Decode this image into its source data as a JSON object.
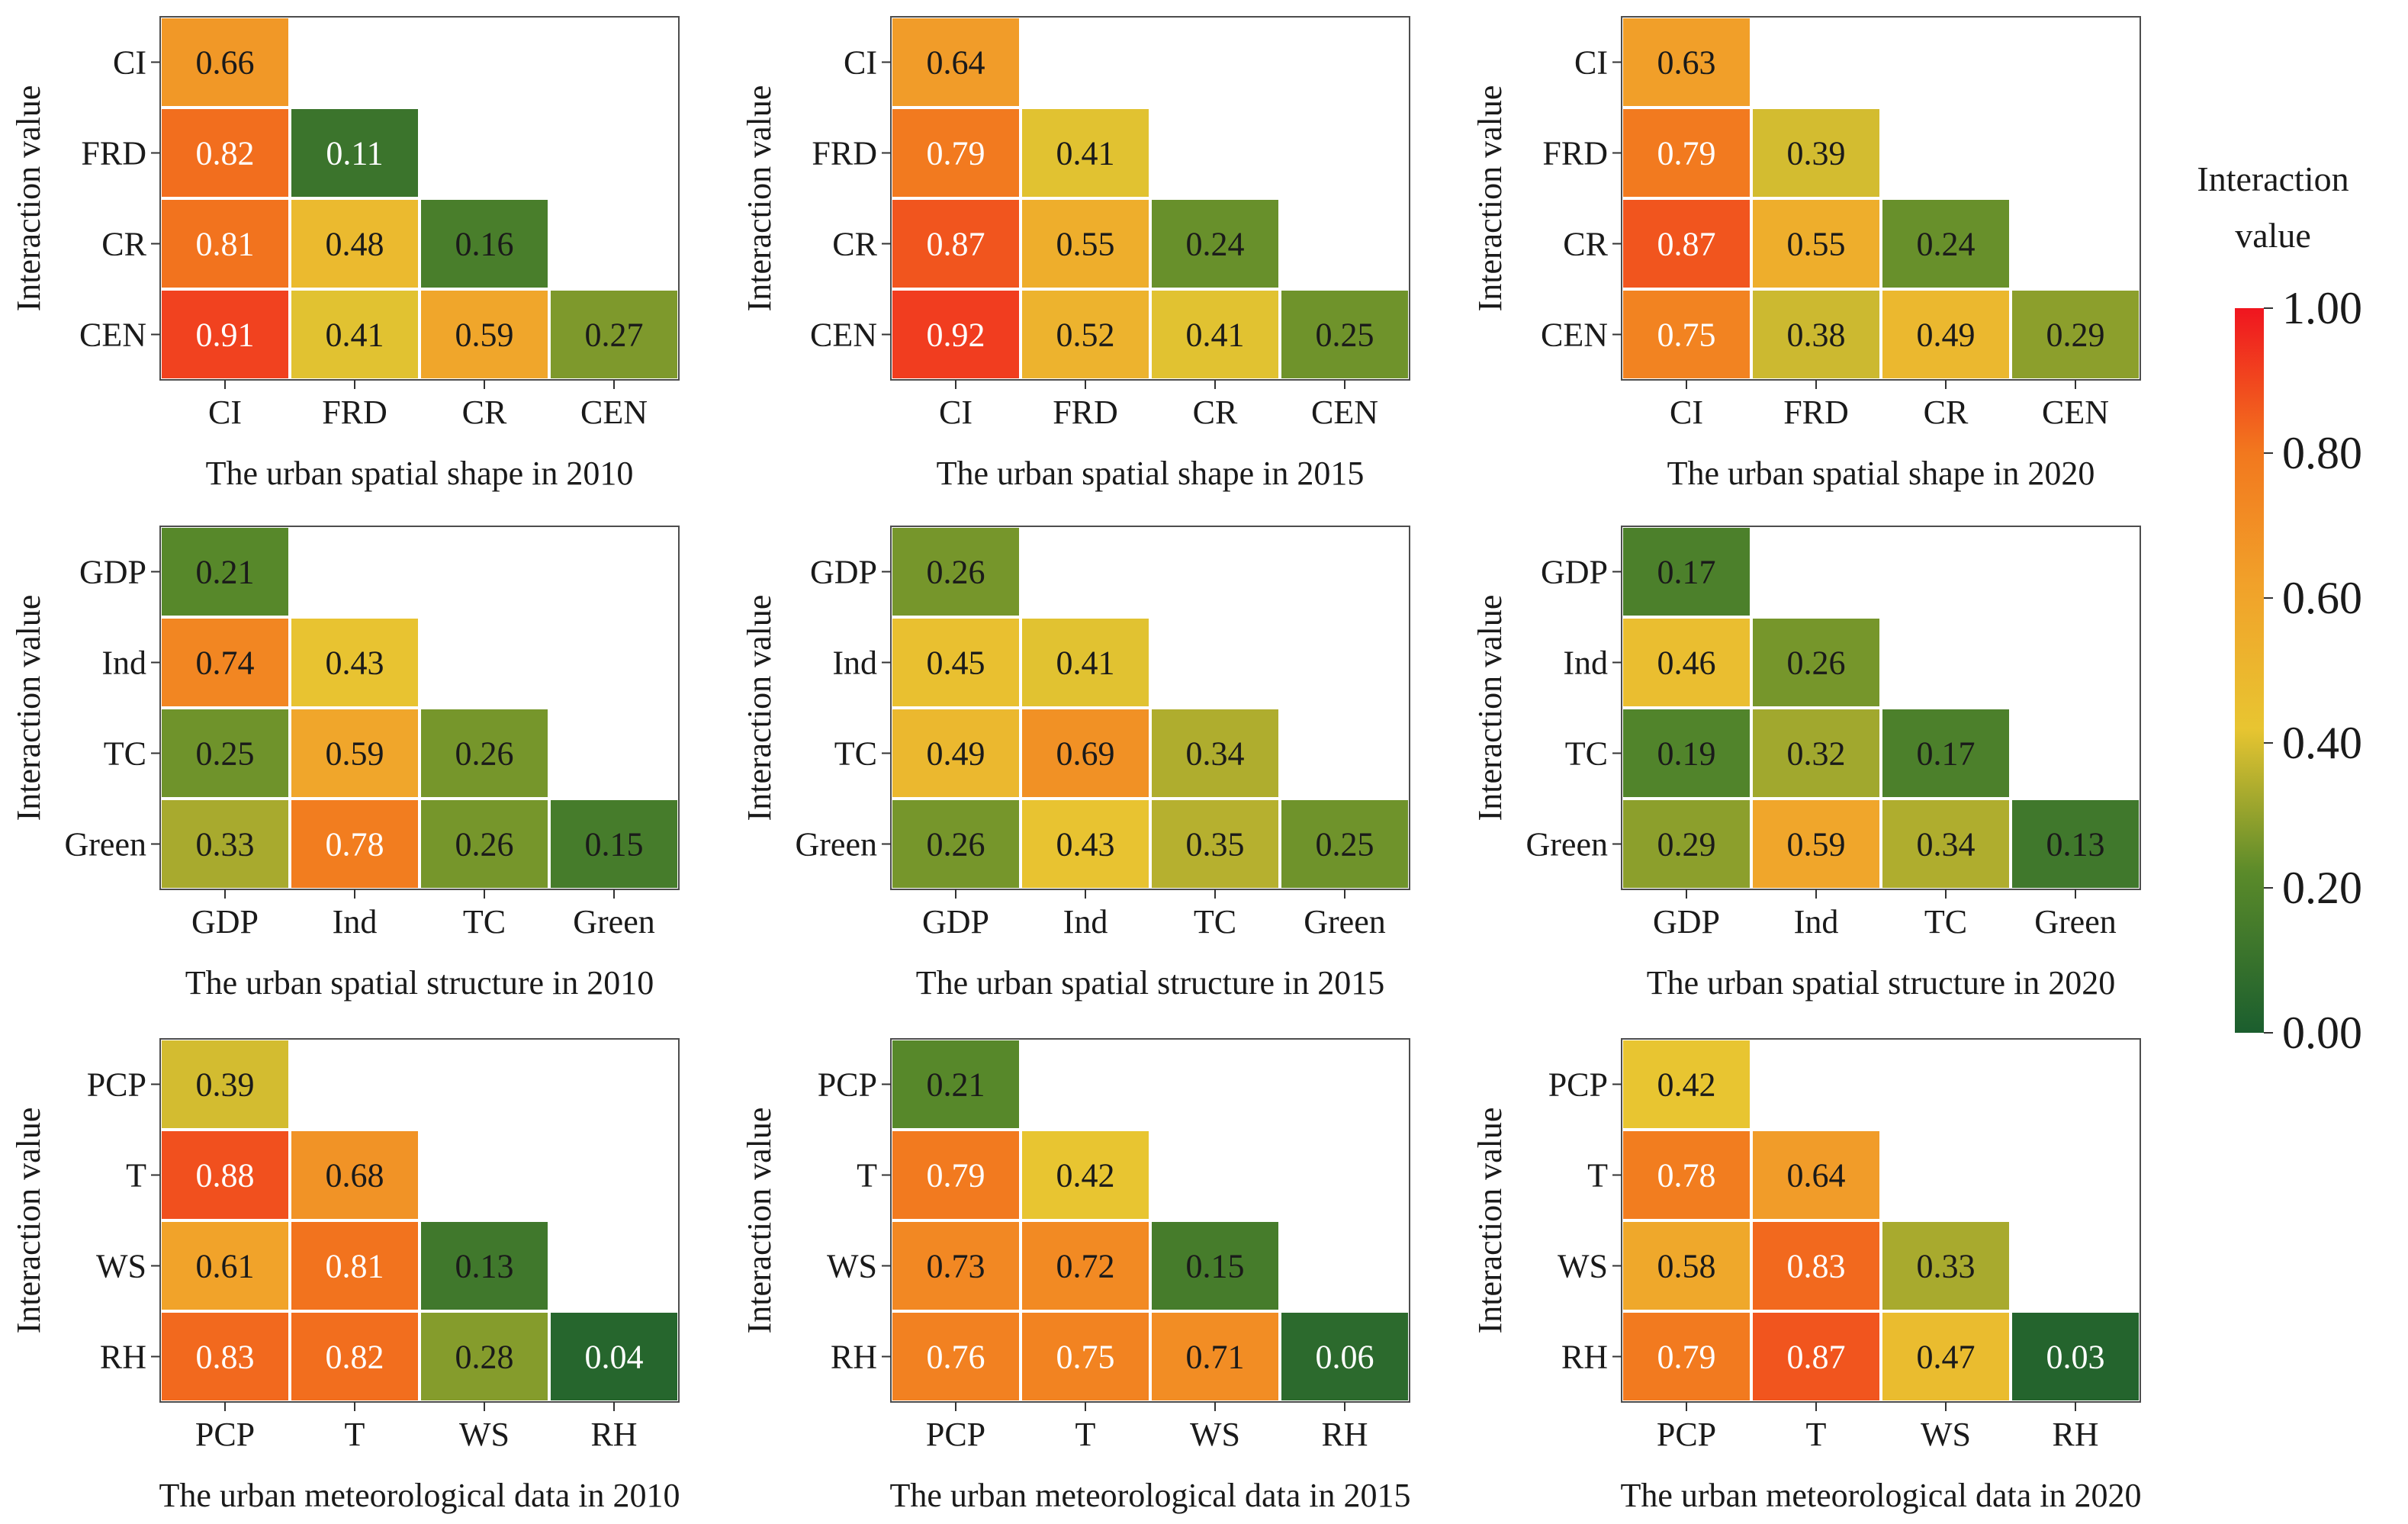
{
  "figure": {
    "y_axis_label": "Interaction value",
    "colorbar": {
      "title_line1": "Interaction",
      "title_line2": "value",
      "ticks": [
        "1.00",
        "0.80",
        "0.60",
        "0.40",
        "0.20",
        "0.00"
      ],
      "colors": {
        "low": "#1b5e2e",
        "mid_low": "#5a8a2a",
        "mid": "#e8c531",
        "mid_high": "#f2781e",
        "high": "#f0151f"
      }
    }
  },
  "chart_data": [
    {
      "type": "heatmap",
      "title": "The urban spatial shape in 2010",
      "categories": [
        "CI",
        "FRD",
        "CR",
        "CEN"
      ],
      "values": [
        [
          0.66
        ],
        [
          0.82,
          0.11
        ],
        [
          0.81,
          0.48,
          0.16
        ],
        [
          0.91,
          0.41,
          0.59,
          0.27
        ]
      ],
      "labels": [
        [
          "0.66"
        ],
        [
          "0.82",
          "0.11"
        ],
        [
          "0.81",
          "0.48",
          "0.16"
        ],
        [
          "0.91",
          "0.41",
          "0.59",
          "0.27"
        ]
      ],
      "ylabel": "Interaction value",
      "vrange": [
        0,
        1
      ]
    },
    {
      "type": "heatmap",
      "title": "The urban spatial shape in 2015",
      "categories": [
        "CI",
        "FRD",
        "CR",
        "CEN"
      ],
      "values": [
        [
          0.64
        ],
        [
          0.79,
          0.41
        ],
        [
          0.87,
          0.55,
          0.24
        ],
        [
          0.92,
          0.52,
          0.41,
          0.25
        ]
      ],
      "labels": [
        [
          "0.64"
        ],
        [
          "0.79",
          "0.41"
        ],
        [
          "0.87",
          "0.55",
          "0.24"
        ],
        [
          "0.92",
          "0.52",
          "0.41",
          "0.25"
        ]
      ],
      "ylabel": "Interaction value",
      "vrange": [
        0,
        1
      ]
    },
    {
      "type": "heatmap",
      "title": "The urban spatial shape in 2020",
      "categories": [
        "CI",
        "FRD",
        "CR",
        "CEN"
      ],
      "values": [
        [
          0.63
        ],
        [
          0.79,
          0.39
        ],
        [
          0.87,
          0.55,
          0.24
        ],
        [
          0.75,
          0.38,
          0.49,
          0.29
        ]
      ],
      "labels": [
        [
          "0.63"
        ],
        [
          "0.79",
          "0.39"
        ],
        [
          "0.87",
          "0.55",
          "0.24"
        ],
        [
          "0.75",
          "0.38",
          "0.49",
          "0.29"
        ]
      ],
      "ylabel": "Interaction value",
      "vrange": [
        0,
        1
      ]
    },
    {
      "type": "heatmap",
      "title": "The urban spatial structure in 2010",
      "categories": [
        "GDP",
        "Ind",
        "TC",
        "Green"
      ],
      "values": [
        [
          0.21
        ],
        [
          0.74,
          0.43
        ],
        [
          0.25,
          0.59,
          0.26
        ],
        [
          0.33,
          0.78,
          0.26,
          0.15
        ]
      ],
      "labels": [
        [
          "0.21"
        ],
        [
          "0.74",
          "0.43"
        ],
        [
          "0.25",
          "0.59",
          "0.26"
        ],
        [
          "0.33",
          "0.78",
          "0.26",
          "0.15"
        ]
      ],
      "ylabel": "Interaction value",
      "vrange": [
        0,
        1
      ]
    },
    {
      "type": "heatmap",
      "title": "The urban spatial structure in 2015",
      "categories": [
        "GDP",
        "Ind",
        "TC",
        "Green"
      ],
      "values": [
        [
          0.26
        ],
        [
          0.45,
          0.41
        ],
        [
          0.49,
          0.69,
          0.34
        ],
        [
          0.26,
          0.43,
          0.35,
          0.25
        ]
      ],
      "labels": [
        [
          "0.26"
        ],
        [
          "0.45",
          "0.41"
        ],
        [
          "0.49",
          "0.69",
          "0.34"
        ],
        [
          "0.26",
          "0.43",
          "0.35",
          "0.25"
        ]
      ],
      "ylabel": "Interaction value",
      "vrange": [
        0,
        1
      ]
    },
    {
      "type": "heatmap",
      "title": "The urban spatial structure in 2020",
      "categories": [
        "GDP",
        "Ind",
        "TC",
        "Green"
      ],
      "values": [
        [
          0.17
        ],
        [
          0.46,
          0.26
        ],
        [
          0.19,
          0.32,
          0.17
        ],
        [
          0.29,
          0.59,
          0.34,
          0.13
        ]
      ],
      "labels": [
        [
          "0.17"
        ],
        [
          "0.46",
          "0.26"
        ],
        [
          "0.19",
          "0.32",
          "0.17"
        ],
        [
          "0.29",
          "0.59",
          "0.34",
          "0.13"
        ]
      ],
      "ylabel": "Interaction value",
      "vrange": [
        0,
        1
      ]
    },
    {
      "type": "heatmap",
      "title": "The urban meteorological data in 2010",
      "categories": [
        "PCP",
        "T",
        "WS",
        "RH"
      ],
      "values": [
        [
          0.39
        ],
        [
          0.88,
          0.68
        ],
        [
          0.61,
          0.81,
          0.13
        ],
        [
          0.83,
          0.82,
          0.28,
          0.04
        ]
      ],
      "labels": [
        [
          "0.39"
        ],
        [
          "0.88",
          "0.68"
        ],
        [
          "0.61",
          "0.81",
          "0.13"
        ],
        [
          "0.83",
          "0.82",
          "0.28",
          "0.04"
        ]
      ],
      "ylabel": "Interaction value",
      "vrange": [
        0,
        1
      ]
    },
    {
      "type": "heatmap",
      "title": "The urban meteorological data in 2015",
      "categories": [
        "PCP",
        "T",
        "WS",
        "RH"
      ],
      "values": [
        [
          0.21
        ],
        [
          0.79,
          0.42
        ],
        [
          0.73,
          0.72,
          0.15
        ],
        [
          0.76,
          0.75,
          0.71,
          0.06
        ]
      ],
      "labels": [
        [
          "0.21"
        ],
        [
          "0.79",
          "0.42"
        ],
        [
          "0.73",
          "0.72",
          "0.15"
        ],
        [
          "0.76",
          "0.75",
          "0.71",
          "0.06"
        ]
      ],
      "ylabel": "Interaction value",
      "vrange": [
        0,
        1
      ]
    },
    {
      "type": "heatmap",
      "title": "The urban meteorological data in 2020",
      "categories": [
        "PCP",
        "T",
        "WS",
        "RH"
      ],
      "values": [
        [
          0.42
        ],
        [
          0.78,
          0.64
        ],
        [
          0.58,
          0.83,
          0.33
        ],
        [
          0.79,
          0.87,
          0.47,
          0.03
        ]
      ],
      "labels": [
        [
          "0.42"
        ],
        [
          "0.78",
          "0.64"
        ],
        [
          "0.58",
          "0.83",
          "0.33"
        ],
        [
          "0.79",
          "0.87",
          "0.47",
          "0.03"
        ]
      ],
      "ylabel": "Interaction value",
      "vrange": [
        0,
        1
      ]
    }
  ]
}
